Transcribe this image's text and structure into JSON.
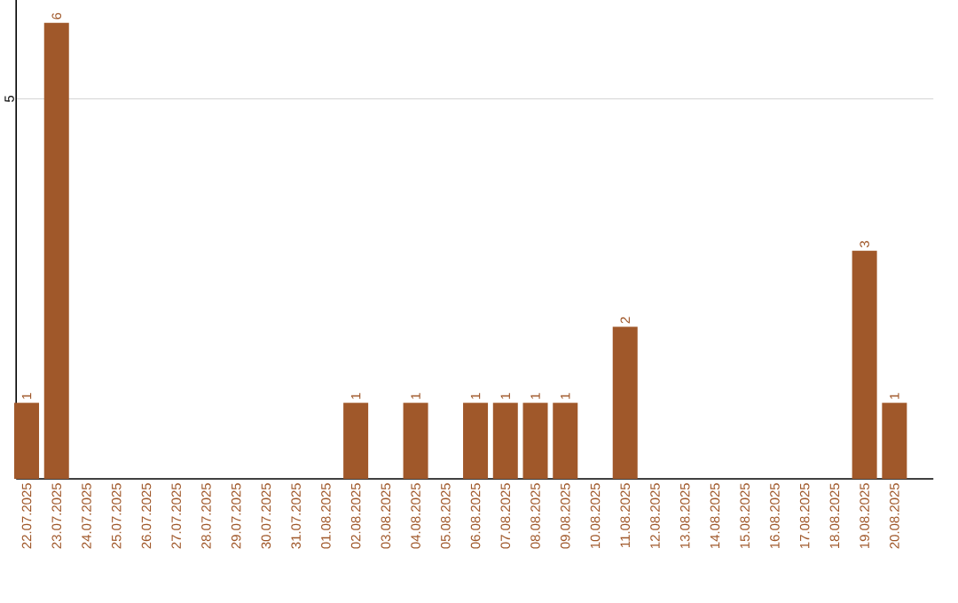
{
  "chart_data": {
    "type": "bar",
    "categories": [
      "22.07.2025",
      "23.07.2025",
      "24.07.2025",
      "25.07.2025",
      "26.07.2025",
      "27.07.2025",
      "28.07.2025",
      "29.07.2025",
      "30.07.2025",
      "31.07.2025",
      "01.08.2025",
      "02.08.2025",
      "03.08.2025",
      "04.08.2025",
      "05.08.2025",
      "06.08.2025",
      "07.08.2025",
      "08.08.2025",
      "09.08.2025",
      "10.08.2025",
      "11.08.2025",
      "12.08.2025",
      "13.08.2025",
      "14.08.2025",
      "15.08.2025",
      "16.08.2025",
      "17.08.2025",
      "18.08.2025",
      "19.08.2025",
      "20.08.2025"
    ],
    "values": [
      1,
      6,
      0,
      0,
      0,
      0,
      0,
      0,
      0,
      0,
      0,
      1,
      0,
      1,
      0,
      1,
      1,
      1,
      1,
      0,
      2,
      0,
      0,
      0,
      0,
      0,
      0,
      0,
      3,
      1
    ],
    "value_labels": [
      "1",
      "6",
      null,
      null,
      null,
      null,
      null,
      null,
      null,
      null,
      null,
      "1",
      null,
      "1",
      null,
      "1",
      "1",
      "1",
      "1",
      null,
      "2",
      null,
      null,
      null,
      null,
      null,
      null,
      null,
      "3",
      "1"
    ],
    "color": "#a0582a",
    "ylim": [
      0,
      6.3
    ],
    "yticks": [
      5
    ],
    "grid": "y"
  }
}
